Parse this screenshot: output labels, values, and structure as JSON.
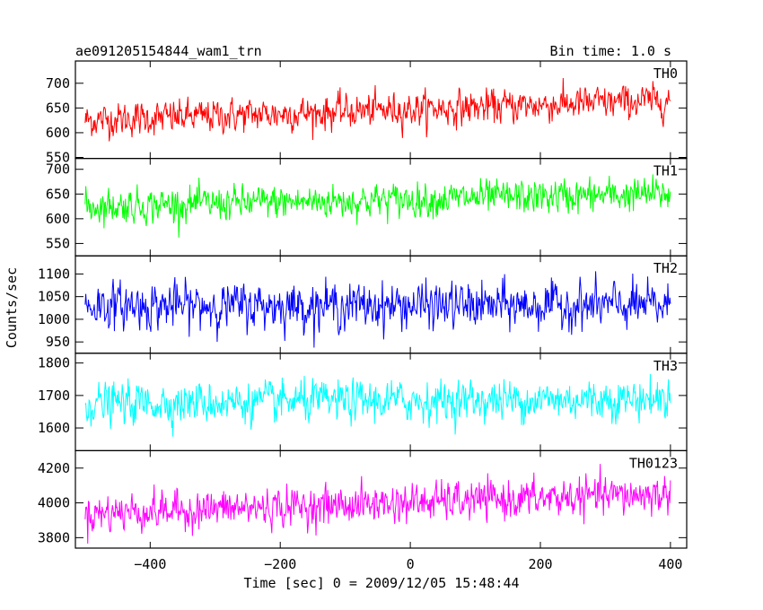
{
  "header": {
    "title": "ae091205154844_wam1_trn",
    "bin_time": "Bin time: 1.0 s"
  },
  "chart_data": {
    "type": "line",
    "xlabel": "Time [sec] 0 = 2009/12/05 15:48:44",
    "ylabel": "Counts/sec",
    "xlim": [
      -515,
      425
    ],
    "x_range_data": [
      -500,
      400
    ],
    "bin_time_s": 1.0,
    "x_ticks": [
      -400,
      -200,
      0,
      200,
      400
    ],
    "grid": false,
    "panels": [
      {
        "name": "TH0",
        "color": "#ff0000",
        "ylim": [
          548,
          745
        ],
        "y_ticks": [
          550,
          600,
          650,
          700
        ],
        "trend_start": 625,
        "trend_end": 665,
        "noise_sd": 22
      },
      {
        "name": "TH1",
        "color": "#00ff00",
        "ylim": [
          525,
          722
        ],
        "y_ticks": [
          550,
          600,
          650,
          700
        ],
        "trend_start": 625,
        "trend_end": 650,
        "noise_sd": 22
      },
      {
        "name": "TH2",
        "color": "#0000ff",
        "ylim": [
          925,
          1140
        ],
        "y_ticks": [
          950,
          1000,
          1050,
          1100
        ],
        "trend_start": 1030,
        "trend_end": 1030,
        "noise_sd": 32
      },
      {
        "name": "TH3",
        "color": "#00ffff",
        "ylim": [
          1530,
          1830
        ],
        "y_ticks": [
          1600,
          1700,
          1800
        ],
        "trend_start": 1675,
        "trend_end": 1690,
        "noise_sd": 40
      },
      {
        "name": "TH0123",
        "color": "#ff00ff",
        "ylim": [
          3740,
          4300
        ],
        "y_ticks": [
          3800,
          4000,
          4200
        ],
        "trend_start": 3940,
        "trend_end": 4050,
        "noise_sd": 70
      }
    ]
  }
}
